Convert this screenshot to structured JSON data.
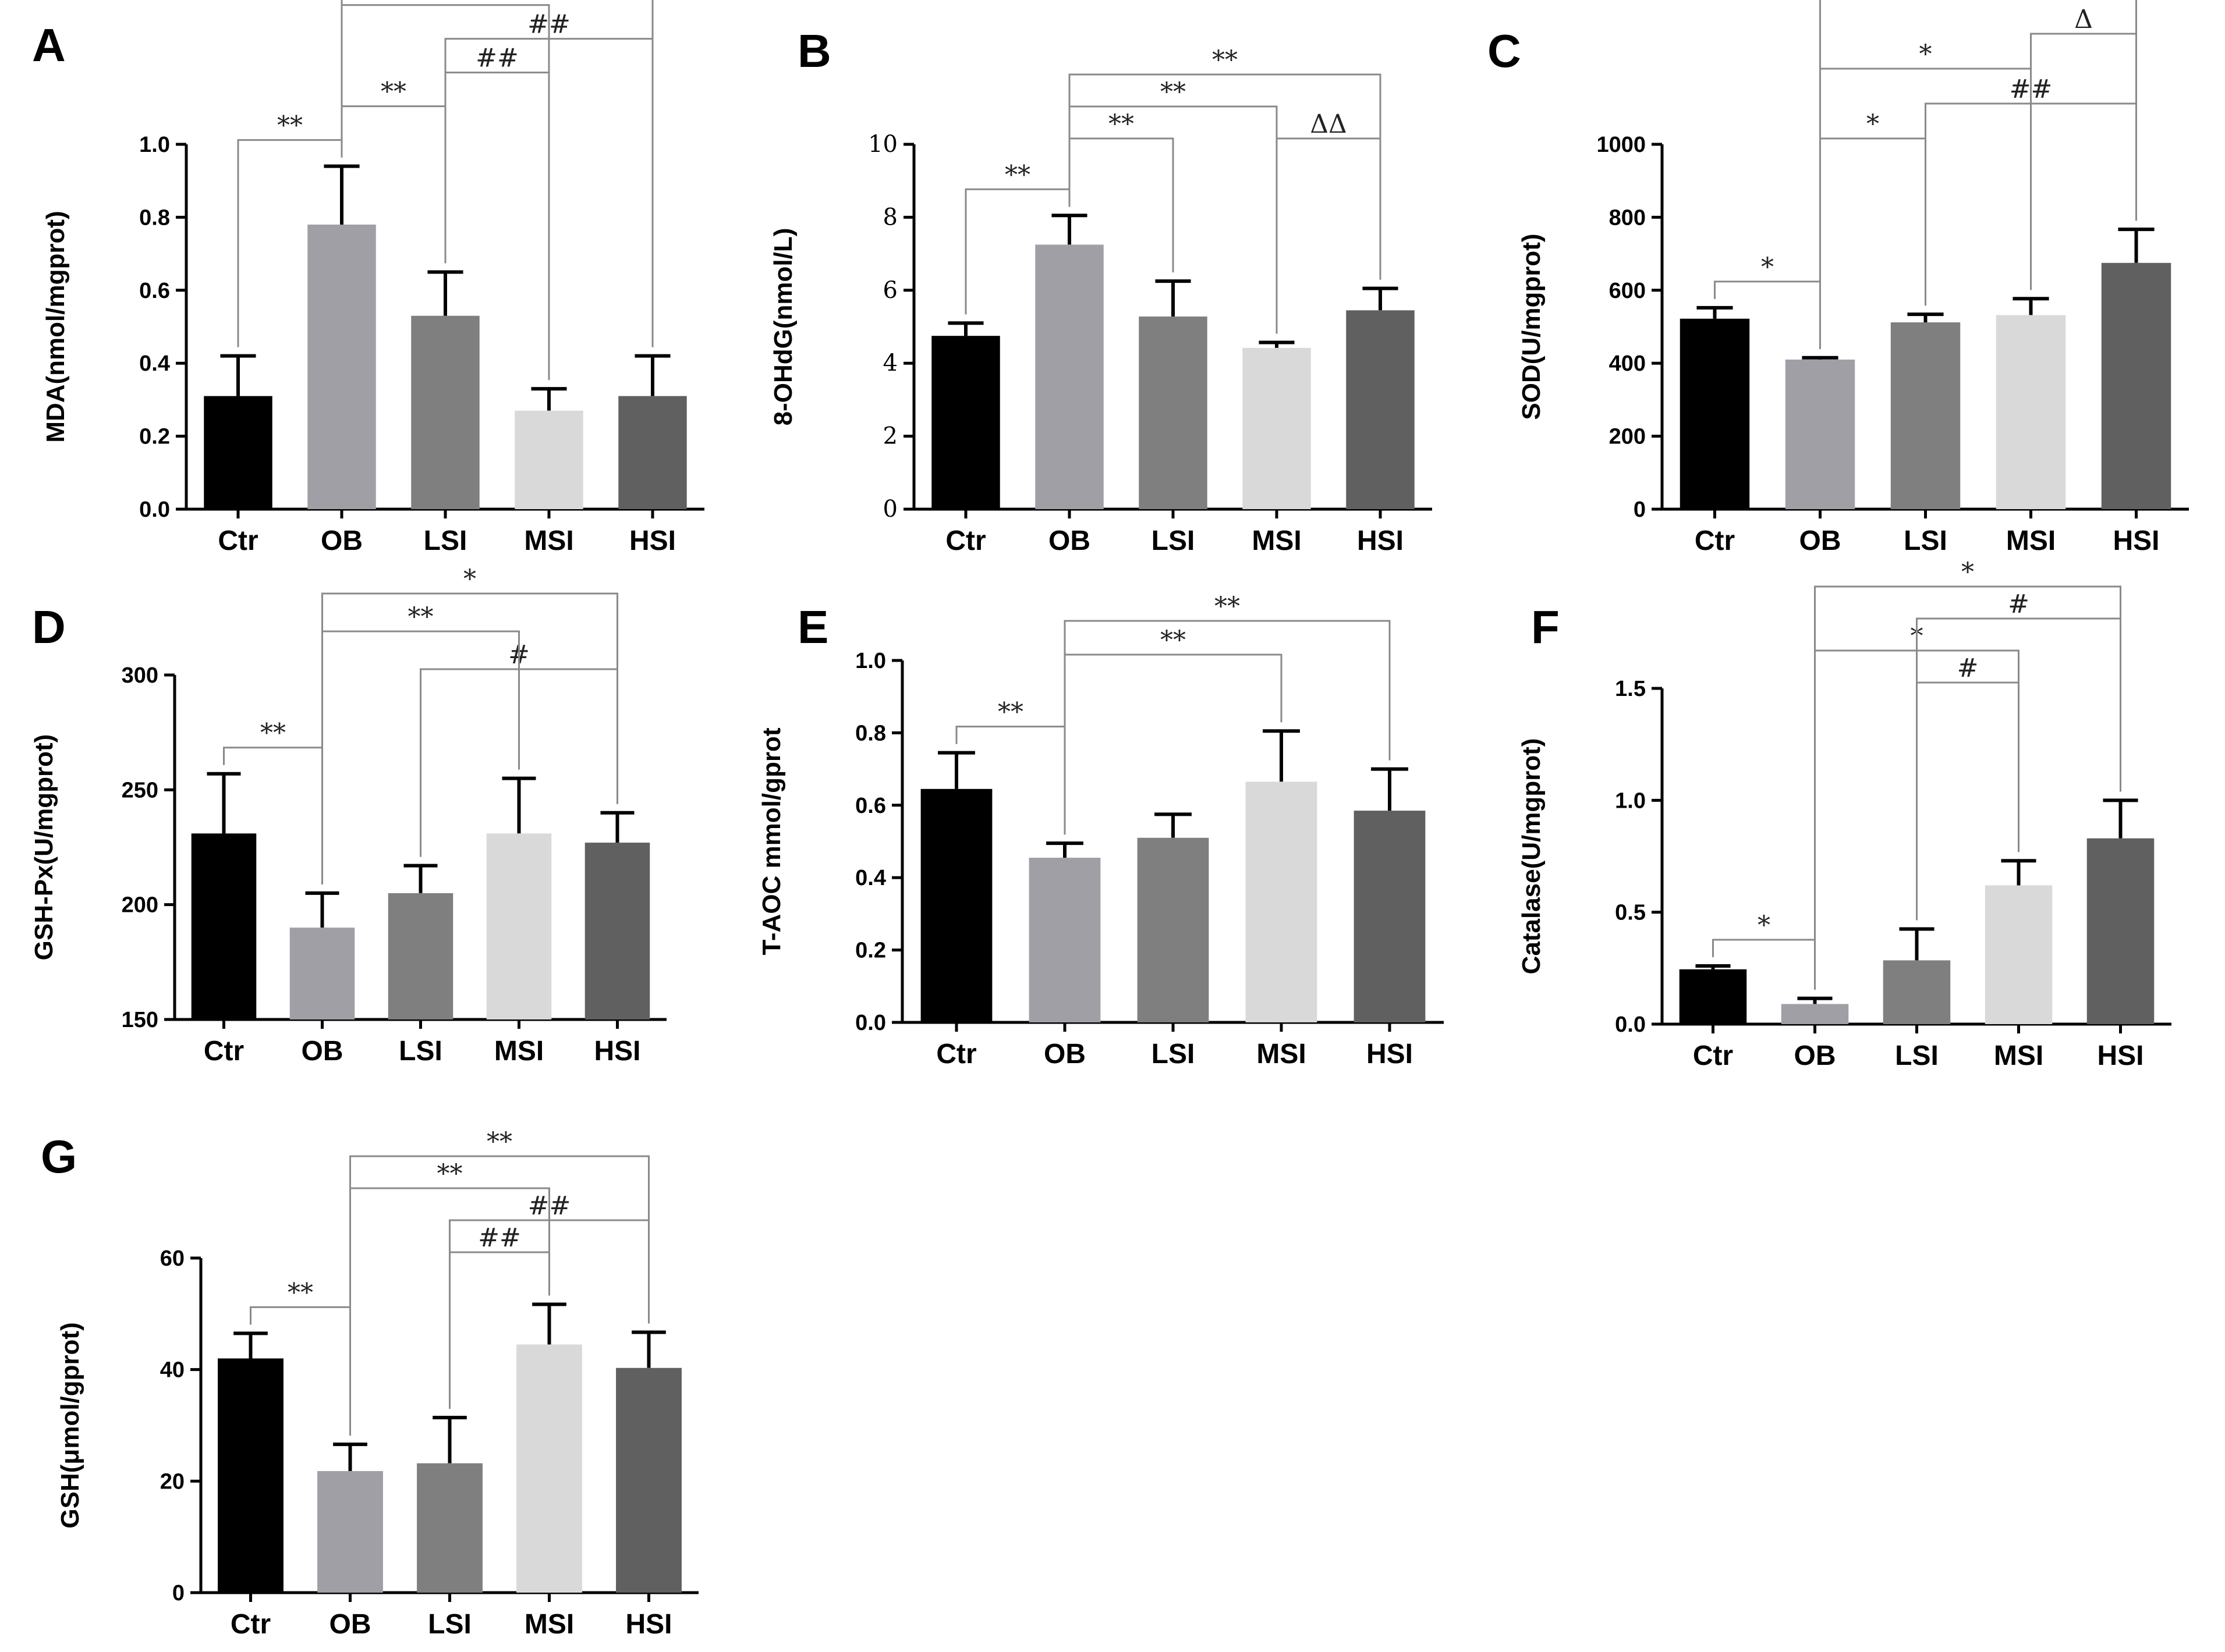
{
  "colors": {
    "Ctr": "#000000",
    "OB": "#a09fa6",
    "LSI": "#7f7f7f",
    "MSI": "#d9d9d9",
    "HSI": "#606060",
    "axis": "#000000",
    "bracket": "#8a8a8a"
  },
  "chart_data": [
    {
      "type": "bar",
      "panel": "A",
      "ylabel": "MDA(nmol/mgprot)",
      "categories": [
        "Ctr",
        "OB",
        "LSI",
        "MSI",
        "HSI"
      ],
      "values": [
        0.31,
        0.78,
        0.53,
        0.27,
        0.31
      ],
      "errors": [
        0.11,
        0.16,
        0.12,
        0.06,
        0.11
      ],
      "ylim": [
        0,
        1.0
      ],
      "yticks": [
        0.0,
        0.2,
        0.4,
        0.6,
        0.8,
        1.0
      ],
      "tick_labels": [
        "0.0",
        "0.2",
        "0.4",
        "0.6",
        "0.8",
        "1.0"
      ],
      "annotations": [
        {
          "from": "Ctr",
          "to": "OB",
          "label": "**"
        },
        {
          "from": "OB",
          "to": "LSI",
          "label": "**"
        },
        {
          "from": "LSI",
          "to": "MSI",
          "label": "##"
        },
        {
          "from": "LSI",
          "to": "HSI",
          "label": "##"
        },
        {
          "from": "OB",
          "to": "MSI",
          "label": "**"
        },
        {
          "from": "OB",
          "to": "HSI",
          "label": "**"
        }
      ]
    },
    {
      "type": "bar",
      "panel": "B",
      "ylabel": "8-OHdG(nmol/L)",
      "categories": [
        "Ctr",
        "OB",
        "LSI",
        "MSI",
        "HSI"
      ],
      "values": [
        4.75,
        7.25,
        5.28,
        4.42,
        5.45
      ],
      "errors": [
        0.35,
        0.8,
        0.97,
        0.15,
        0.6
      ],
      "ylim": [
        0,
        10
      ],
      "yticks": [
        0,
        2,
        4,
        6,
        8,
        10
      ],
      "tick_labels": [
        "0",
        "2",
        "4",
        "6",
        "8",
        "10"
      ],
      "serif_ticks": true,
      "annotations": [
        {
          "from": "Ctr",
          "to": "OB",
          "label": "**"
        },
        {
          "from": "OB",
          "to": "LSI",
          "label": "**"
        },
        {
          "from": "MSI",
          "to": "HSI",
          "label": "ΔΔ"
        },
        {
          "from": "OB",
          "to": "MSI",
          "label": "**"
        },
        {
          "from": "OB",
          "to": "HSI",
          "label": "**"
        }
      ]
    },
    {
      "type": "bar",
      "panel": "C",
      "ylabel": "SOD(U/mgprot)",
      "categories": [
        "Ctr",
        "OB",
        "LSI",
        "MSI",
        "HSI"
      ],
      "values": [
        522,
        410,
        512,
        532,
        675
      ],
      "errors": [
        30,
        5,
        22,
        45,
        92
      ],
      "ylim": [
        0,
        1000
      ],
      "yticks": [
        0,
        200,
        400,
        600,
        800,
        1000
      ],
      "tick_labels": [
        "0",
        "200",
        "400",
        "600",
        "800",
        "1000"
      ],
      "annotations": [
        {
          "from": "Ctr",
          "to": "OB",
          "label": "*"
        },
        {
          "from": "OB",
          "to": "LSI",
          "label": "*"
        },
        {
          "from": "LSI",
          "to": "HSI",
          "label": "##"
        },
        {
          "from": "OB",
          "to": "MSI",
          "label": "*"
        },
        {
          "from": "MSI",
          "to": "HSI",
          "label": "Δ"
        },
        {
          "from": "OB",
          "to": "HSI",
          "label": "**"
        }
      ]
    },
    {
      "type": "bar",
      "panel": "D",
      "ylabel": "GSH-Px(U/mgprot)",
      "categories": [
        "Ctr",
        "OB",
        "LSI",
        "MSI",
        "HSI"
      ],
      "values": [
        231,
        190,
        205,
        231,
        227
      ],
      "errors": [
        26,
        15,
        12,
        24,
        13
      ],
      "ylim": [
        150,
        300
      ],
      "yticks": [
        150,
        200,
        250,
        300
      ],
      "tick_labels": [
        "150",
        "200",
        "250",
        "300"
      ],
      "annotations": [
        {
          "from": "Ctr",
          "to": "OB",
          "label": "**"
        },
        {
          "from": "LSI",
          "to": "HSI",
          "label": "#"
        },
        {
          "from": "OB",
          "to": "MSI",
          "label": "**"
        },
        {
          "from": "OB",
          "to": "HSI",
          "label": "*"
        }
      ]
    },
    {
      "type": "bar",
      "panel": "E",
      "ylabel": "T-AOC mmol/gprot",
      "categories": [
        "Ctr",
        "OB",
        "LSI",
        "MSI",
        "HSI"
      ],
      "values": [
        0.645,
        0.455,
        0.51,
        0.665,
        0.585
      ],
      "errors": [
        0.1,
        0.04,
        0.065,
        0.14,
        0.115
      ],
      "ylim": [
        0,
        1.0
      ],
      "yticks": [
        0.0,
        0.2,
        0.4,
        0.6,
        0.8,
        1.0
      ],
      "tick_labels": [
        "0.0",
        "0.2",
        "0.4",
        "0.6",
        "0.8",
        "1.0"
      ],
      "annotations": [
        {
          "from": "Ctr",
          "to": "OB",
          "label": "**"
        },
        {
          "from": "OB",
          "to": "MSI",
          "label": "**"
        },
        {
          "from": "OB",
          "to": "HSI",
          "label": "**"
        }
      ]
    },
    {
      "type": "bar",
      "panel": "F",
      "ylabel": "Catalase(U/mgprot)",
      "categories": [
        "Ctr",
        "OB",
        "LSI",
        "MSI",
        "HSI"
      ],
      "values": [
        0.245,
        0.09,
        0.285,
        0.62,
        0.83
      ],
      "errors": [
        0.015,
        0.025,
        0.14,
        0.11,
        0.17
      ],
      "ylim": [
        0,
        1.5
      ],
      "yticks": [
        0.0,
        0.5,
        1.0,
        1.5
      ],
      "tick_labels": [
        "0.0",
        "0.5",
        "1.0",
        "1.5"
      ],
      "annotations": [
        {
          "from": "Ctr",
          "to": "OB",
          "label": "*"
        },
        {
          "from": "LSI",
          "to": "MSI",
          "label": "#"
        },
        {
          "from": "OB",
          "to": "MSI",
          "label": "*"
        },
        {
          "from": "LSI",
          "to": "HSI",
          "label": "#"
        },
        {
          "from": "OB",
          "to": "HSI",
          "label": "*"
        }
      ]
    },
    {
      "type": "bar",
      "panel": "G",
      "ylabel": "GSH(μmol/gprot)",
      "categories": [
        "Ctr",
        "OB",
        "LSI",
        "MSI",
        "HSI"
      ],
      "values": [
        42,
        21.8,
        23.2,
        44.5,
        40.3
      ],
      "errors": [
        4.5,
        4.8,
        8.2,
        7.2,
        6.4
      ],
      "ylim": [
        0,
        60
      ],
      "yticks": [
        0,
        20,
        40,
        60
      ],
      "tick_labels": [
        "0",
        "20",
        "40",
        "60"
      ],
      "annotations": [
        {
          "from": "Ctr",
          "to": "OB",
          "label": "**"
        },
        {
          "from": "LSI",
          "to": "MSI",
          "label": "##"
        },
        {
          "from": "LSI",
          "to": "HSI",
          "label": "##"
        },
        {
          "from": "OB",
          "to": "MSI",
          "label": "**"
        },
        {
          "from": "OB",
          "to": "HSI",
          "label": "**"
        }
      ]
    }
  ]
}
